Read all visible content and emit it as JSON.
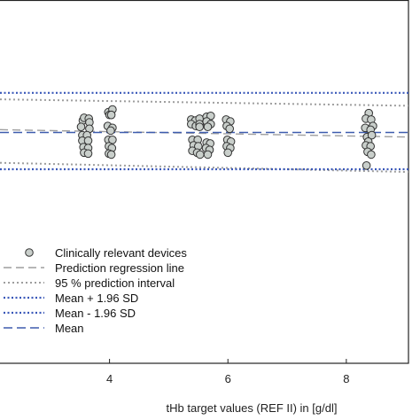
{
  "chart_data": {
    "type": "scatter",
    "xlabel": "tHb target values (REF II) in [g/dl]",
    "ylabel": "",
    "xlim": [
      2.15,
      9.05
    ],
    "ylim": [
      -2.6,
      1.35
    ],
    "x_ticks": [
      4,
      6,
      8
    ],
    "x_tick_labels": [
      "4",
      "6",
      "8"
    ],
    "grid": false,
    "legend_position": "bottom-left",
    "series": [
      {
        "name": "Clinically relevant devices",
        "style": "points",
        "color": "#c9cfcb",
        "edge_color": "#333333",
        "points": [
          [
            3.55,
            0.04
          ],
          [
            3.57,
            0.07
          ],
          [
            3.65,
            0.06
          ],
          [
            3.66,
            0.02
          ],
          [
            3.52,
            -0.03
          ],
          [
            3.66,
            -0.05
          ],
          [
            3.54,
            -0.12
          ],
          [
            3.62,
            -0.12
          ],
          [
            3.54,
            -0.18
          ],
          [
            3.64,
            -0.18
          ],
          [
            3.56,
            -0.25
          ],
          [
            3.64,
            -0.26
          ],
          [
            3.57,
            -0.31
          ],
          [
            3.64,
            -0.32
          ],
          [
            3.98,
            0.13
          ],
          [
            4.05,
            0.16
          ],
          [
            4.0,
            0.1
          ],
          [
            4.03,
            0.1
          ],
          [
            3.97,
            -0.02
          ],
          [
            4.05,
            -0.04
          ],
          [
            4.02,
            -0.07
          ],
          [
            3.98,
            -0.17
          ],
          [
            4.05,
            -0.17
          ],
          [
            3.99,
            -0.24
          ],
          [
            4.04,
            -0.26
          ],
          [
            3.99,
            -0.32
          ],
          [
            4.03,
            -0.33
          ],
          [
            5.38,
            0.05
          ],
          [
            5.45,
            0.04
          ],
          [
            5.52,
            0.06
          ],
          [
            5.38,
            0.0
          ],
          [
            5.46,
            -0.02
          ],
          [
            5.52,
            0.0
          ],
          [
            5.52,
            -0.03
          ],
          [
            5.4,
            -0.17
          ],
          [
            5.49,
            -0.17
          ],
          [
            5.42,
            -0.23
          ],
          [
            5.5,
            -0.24
          ],
          [
            5.4,
            -0.29
          ],
          [
            5.48,
            -0.31
          ],
          [
            5.53,
            -0.33
          ],
          [
            5.64,
            0.08
          ],
          [
            5.71,
            0.09
          ],
          [
            5.64,
            0.03
          ],
          [
            5.71,
            0.0
          ],
          [
            5.66,
            -0.03
          ],
          [
            5.64,
            -0.2
          ],
          [
            5.7,
            -0.21
          ],
          [
            5.63,
            -0.26
          ],
          [
            5.69,
            -0.28
          ],
          [
            5.66,
            -0.33
          ],
          [
            5.97,
            0.05
          ],
          [
            6.04,
            0.03
          ],
          [
            5.98,
            -0.02
          ],
          [
            6.03,
            -0.05
          ],
          [
            5.99,
            -0.17
          ],
          [
            6.05,
            -0.19
          ],
          [
            5.98,
            -0.24
          ],
          [
            6.04,
            -0.26
          ],
          [
            6.0,
            -0.31
          ],
          [
            8.38,
            0.12
          ],
          [
            8.33,
            0.06
          ],
          [
            8.42,
            0.05
          ],
          [
            8.45,
            -0.02
          ],
          [
            8.32,
            -0.04
          ],
          [
            8.41,
            -0.06
          ],
          [
            8.35,
            -0.14
          ],
          [
            8.43,
            -0.12
          ],
          [
            8.37,
            -0.19
          ],
          [
            8.33,
            -0.23
          ],
          [
            8.41,
            -0.24
          ],
          [
            8.36,
            -0.3
          ],
          [
            8.42,
            -0.33
          ],
          [
            8.34,
            -0.45
          ]
        ]
      },
      {
        "name": "Prediction regression line",
        "style": "dash-gray",
        "color": "#9e9e9e",
        "x": [
          2.15,
          9.05
        ],
        "y": [
          -0.06,
          -0.14
        ]
      },
      {
        "name": "95 % prediction interval",
        "style": "dot-gray",
        "color": "#9e9e9e",
        "lines": [
          {
            "x": [
              2.15,
              9.05
            ],
            "y": [
              0.27,
              0.2
            ]
          },
          {
            "x": [
              2.15,
              9.05
            ],
            "y": [
              -0.42,
              -0.52
            ]
          }
        ]
      },
      {
        "name": "Mean + 1.96 SD",
        "style": "dot-blue",
        "color": "#3957b8",
        "x": [
          2.15,
          9.05
        ],
        "y": [
          0.34,
          0.34
        ]
      },
      {
        "name": "Mean - 1.96 SD",
        "style": "dot-blue",
        "color": "#3957b8",
        "x": [
          2.15,
          9.05
        ],
        "y": [
          -0.49,
          -0.49
        ]
      },
      {
        "name": "Mean",
        "style": "dash-blue",
        "color": "#3e5cae",
        "x": [
          2.15,
          9.05
        ],
        "y": [
          -0.09,
          -0.09
        ]
      }
    ]
  }
}
